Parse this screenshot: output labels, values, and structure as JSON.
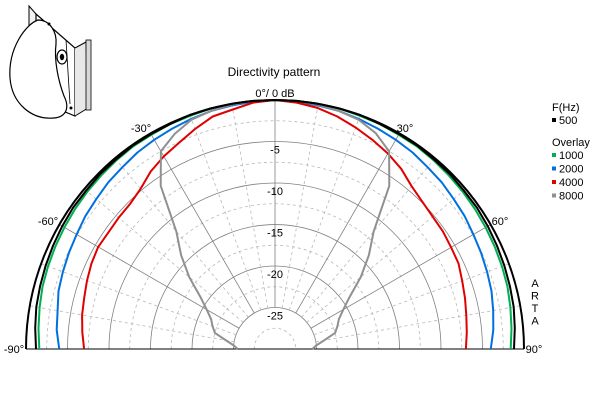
{
  "chart_data": {
    "type": "polar",
    "title": "Directivity pattern",
    "top_label": "0°/ 0 dB",
    "angle_range": [
      -90,
      90
    ],
    "angle_ticks": [
      {
        "deg": -90,
        "label": "-90°"
      },
      {
        "deg": -60,
        "label": "-60°"
      },
      {
        "deg": -30,
        "label": "-30°"
      },
      {
        "deg": 30,
        "label": "30°"
      },
      {
        "deg": 60,
        "label": "60°"
      },
      {
        "deg": 90,
        "label": "90°"
      }
    ],
    "radial_range_db": [
      -30,
      0
    ],
    "radial_ticks": [
      {
        "db": -5,
        "label": "-5"
      },
      {
        "db": -10,
        "label": "-10"
      },
      {
        "db": -15,
        "label": "-15"
      },
      {
        "db": -20,
        "label": "-20"
      },
      {
        "db": -25,
        "label": "-25"
      }
    ],
    "grid": true,
    "legend": {
      "placement": "right",
      "header": "F(Hz)",
      "overlay_header": "Overlay"
    },
    "watermark": "ARTA",
    "angles": [
      -90,
      -85,
      -80,
      -75,
      -70,
      -65,
      -60,
      -55,
      -50,
      -45,
      -40,
      -35,
      -30,
      -25,
      -20,
      -15,
      -10,
      -5,
      0,
      5,
      10,
      15,
      20,
      25,
      30,
      35,
      40,
      45,
      50,
      55,
      60,
      65,
      70,
      75,
      80,
      85,
      90
    ],
    "series": [
      {
        "name": "500",
        "color": "#000000",
        "group": "main",
        "values": [
          -1.2,
          -1.0,
          -0.8,
          -0.7,
          -0.6,
          -0.5,
          -0.4,
          -0.3,
          -0.3,
          -0.2,
          -0.2,
          -0.1,
          -0.1,
          -0.1,
          0,
          0,
          0,
          0,
          0,
          0,
          0,
          0,
          0,
          -0.1,
          -0.1,
          -0.1,
          -0.2,
          -0.2,
          -0.3,
          -0.3,
          -0.4,
          -0.5,
          -0.6,
          -0.7,
          -0.8,
          -1.0,
          -1.2
        ]
      },
      {
        "name": "1000",
        "color": "#00b050",
        "group": "overlay",
        "values": [
          -1.6,
          -1.4,
          -1.2,
          -1.0,
          -0.9,
          -0.8,
          -0.7,
          -0.6,
          -0.5,
          -0.4,
          -0.3,
          -0.2,
          -0.2,
          -0.1,
          -0.1,
          0,
          0,
          0,
          0,
          0,
          0,
          0,
          -0.1,
          -0.1,
          -0.2,
          -0.2,
          -0.3,
          -0.4,
          -0.5,
          -0.6,
          -0.7,
          -0.8,
          -0.9,
          -1.0,
          -1.2,
          -1.4,
          -1.6
        ]
      },
      {
        "name": "2000",
        "color": "#0070e0",
        "group": "overlay",
        "values": [
          -4.0,
          -3.6,
          -3.4,
          -3.0,
          -2.8,
          -2.6,
          -2.4,
          -2.1,
          -1.9,
          -1.6,
          -1.4,
          -1.1,
          -0.9,
          -0.7,
          -0.5,
          -0.3,
          -0.2,
          -0.1,
          0,
          -0.1,
          -0.2,
          -0.3,
          -0.5,
          -0.7,
          -0.9,
          -1.1,
          -1.4,
          -1.6,
          -1.9,
          -2.1,
          -2.4,
          -2.6,
          -2.8,
          -3.0,
          -3.3,
          -3.6,
          -4.0
        ]
      },
      {
        "name": "4000",
        "color": "#e00000",
        "group": "overlay",
        "values": [
          -7.0,
          -6.7,
          -6.4,
          -6.2,
          -5.9,
          -5.6,
          -5.4,
          -5.5,
          -5.4,
          -5.3,
          -4.8,
          -3.9,
          -3.2,
          -2.6,
          -1.8,
          -1.0,
          -0.7,
          -0.2,
          0,
          -0.2,
          -0.5,
          -1.0,
          -1.6,
          -2.2,
          -2.8,
          -3.5,
          -4.4,
          -4.9,
          -5.2,
          -5.3,
          -5.5,
          -5.6,
          -6.0,
          -6.3,
          -6.6,
          -6.8,
          -7.0
        ]
      },
      {
        "name": "8000",
        "color": "#909090",
        "group": "overlay",
        "values": [
          -25.5,
          -25.0,
          -24.0,
          -22.5,
          -22.0,
          -21.5,
          -20.5,
          -19.0,
          -16.5,
          -14.0,
          -11.5,
          -6.0,
          -2.5,
          -1.4,
          -0.6,
          -0.3,
          -0.1,
          0,
          0,
          0,
          -0.1,
          -0.3,
          -0.6,
          -1.3,
          -2.5,
          -6.0,
          -11.5,
          -14.0,
          -16.5,
          -19.0,
          -20.5,
          -21.5,
          -22.0,
          -22.5,
          -24.0,
          -25.0,
          -25.5
        ]
      }
    ]
  }
}
